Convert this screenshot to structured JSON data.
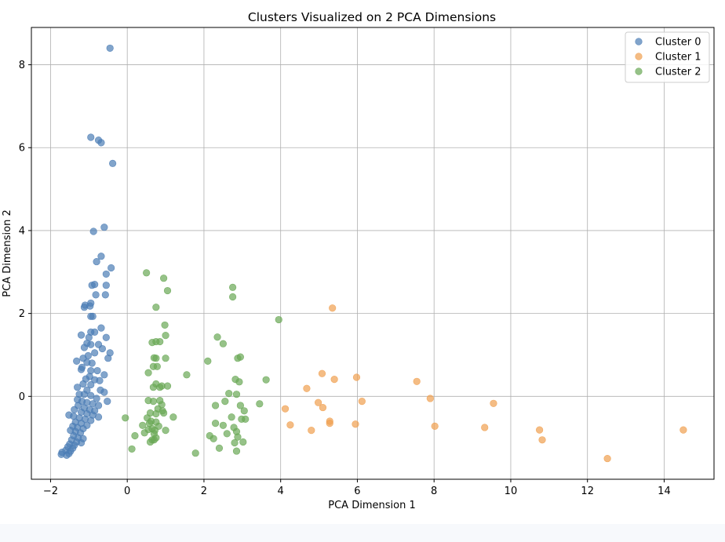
{
  "chart_data": {
    "type": "scatter",
    "title": "Clusters Visualized on 2 PCA Dimensions",
    "xlabel": "PCA Dimension 1",
    "ylabel": "PCA Dimension 2",
    "xlim": [
      -2.5,
      15.3
    ],
    "ylim": [
      -2.0,
      8.9
    ],
    "xticks": [
      -2,
      0,
      2,
      4,
      6,
      8,
      10,
      12,
      14
    ],
    "yticks": [
      0,
      2,
      4,
      6,
      8
    ],
    "grid": true,
    "legend_position": "top-right",
    "series": [
      {
        "name": "Cluster 0",
        "color": "#4c7db5",
        "points": [
          [
            -0.45,
            8.4
          ],
          [
            -0.95,
            6.25
          ],
          [
            -0.75,
            6.18
          ],
          [
            -0.68,
            6.12
          ],
          [
            -0.38,
            5.62
          ],
          [
            -0.6,
            4.08
          ],
          [
            -0.88,
            3.98
          ],
          [
            -0.42,
            3.1
          ],
          [
            -0.68,
            3.38
          ],
          [
            -0.8,
            3.25
          ],
          [
            -0.55,
            2.95
          ],
          [
            -0.55,
            2.68
          ],
          [
            -0.85,
            2.7
          ],
          [
            -0.92,
            2.68
          ],
          [
            -0.82,
            2.45
          ],
          [
            -0.57,
            2.45
          ],
          [
            -1.1,
            2.2
          ],
          [
            -0.95,
            2.25
          ],
          [
            -1.12,
            2.15
          ],
          [
            -0.97,
            2.18
          ],
          [
            -0.9,
            1.93
          ],
          [
            -0.95,
            1.93
          ],
          [
            -0.68,
            1.65
          ],
          [
            -0.95,
            1.55
          ],
          [
            -0.85,
            1.55
          ],
          [
            -0.55,
            1.42
          ],
          [
            -1.2,
            1.48
          ],
          [
            -1.0,
            1.42
          ],
          [
            -1.05,
            1.28
          ],
          [
            -0.95,
            1.25
          ],
          [
            -1.12,
            1.18
          ],
          [
            -0.75,
            1.25
          ],
          [
            -0.65,
            1.15
          ],
          [
            -0.45,
            1.05
          ],
          [
            -0.5,
            0.92
          ],
          [
            -0.85,
            1.05
          ],
          [
            -1.02,
            0.98
          ],
          [
            -1.15,
            0.92
          ],
          [
            -1.32,
            0.85
          ],
          [
            -1.05,
            0.82
          ],
          [
            -0.92,
            0.8
          ],
          [
            -1.18,
            0.7
          ],
          [
            -1.2,
            0.65
          ],
          [
            -0.95,
            0.62
          ],
          [
            -0.78,
            0.62
          ],
          [
            -0.6,
            0.52
          ],
          [
            -0.98,
            0.48
          ],
          [
            -1.08,
            0.42
          ],
          [
            -0.85,
            0.4
          ],
          [
            -0.72,
            0.38
          ],
          [
            -1.15,
            0.3
          ],
          [
            -0.95,
            0.28
          ],
          [
            -1.3,
            0.22
          ],
          [
            -1.05,
            0.15
          ],
          [
            -0.7,
            0.15
          ],
          [
            -0.6,
            0.1
          ],
          [
            -1.25,
            0.05
          ],
          [
            -1.12,
            0.05
          ],
          [
            -0.95,
            0.02
          ],
          [
            -0.8,
            -0.05
          ],
          [
            -0.52,
            -0.12
          ],
          [
            -1.3,
            -0.08
          ],
          [
            -1.18,
            -0.12
          ],
          [
            -1.05,
            -0.15
          ],
          [
            -0.9,
            -0.18
          ],
          [
            -0.75,
            -0.22
          ],
          [
            -1.28,
            -0.22
          ],
          [
            -1.12,
            -0.28
          ],
          [
            -0.98,
            -0.32
          ],
          [
            -0.85,
            -0.35
          ],
          [
            -1.38,
            -0.32
          ],
          [
            -1.2,
            -0.38
          ],
          [
            -1.05,
            -0.42
          ],
          [
            -0.9,
            -0.45
          ],
          [
            -0.75,
            -0.5
          ],
          [
            -1.52,
            -0.45
          ],
          [
            -1.4,
            -0.48
          ],
          [
            -1.25,
            -0.52
          ],
          [
            -1.1,
            -0.55
          ],
          [
            -0.95,
            -0.58
          ],
          [
            -1.35,
            -0.62
          ],
          [
            -1.2,
            -0.65
          ],
          [
            -1.05,
            -0.7
          ],
          [
            -1.42,
            -0.72
          ],
          [
            -1.3,
            -0.75
          ],
          [
            -1.15,
            -0.78
          ],
          [
            -1.48,
            -0.82
          ],
          [
            -1.35,
            -0.85
          ],
          [
            -1.22,
            -0.88
          ],
          [
            -1.4,
            -0.95
          ],
          [
            -1.28,
            -1.0
          ],
          [
            -1.15,
            -1.02
          ],
          [
            -1.45,
            -1.05
          ],
          [
            -1.32,
            -1.1
          ],
          [
            -1.2,
            -1.12
          ],
          [
            -1.5,
            -1.15
          ],
          [
            -1.38,
            -1.18
          ],
          [
            -1.55,
            -1.22
          ],
          [
            -1.42,
            -1.25
          ],
          [
            -1.6,
            -1.3
          ],
          [
            -1.48,
            -1.32
          ],
          [
            -1.52,
            -1.38
          ],
          [
            -1.58,
            -1.42
          ],
          [
            -1.7,
            -1.35
          ],
          [
            -1.72,
            -1.4
          ]
        ]
      },
      {
        "name": "Cluster 1",
        "color": "#f0a050",
        "points": [
          [
            5.35,
            2.13
          ],
          [
            5.08,
            0.55
          ],
          [
            5.98,
            0.46
          ],
          [
            5.4,
            0.41
          ],
          [
            7.55,
            0.36
          ],
          [
            4.68,
            0.19
          ],
          [
            7.9,
            -0.05
          ],
          [
            6.12,
            -0.12
          ],
          [
            9.55,
            -0.17
          ],
          [
            4.98,
            -0.15
          ],
          [
            5.1,
            -0.27
          ],
          [
            4.12,
            -0.3
          ],
          [
            5.28,
            -0.6
          ],
          [
            5.28,
            -0.65
          ],
          [
            5.95,
            -0.67
          ],
          [
            4.25,
            -0.69
          ],
          [
            8.02,
            -0.72
          ],
          [
            9.32,
            -0.75
          ],
          [
            4.8,
            -0.82
          ],
          [
            10.75,
            -0.81
          ],
          [
            14.5,
            -0.81
          ],
          [
            10.82,
            -1.05
          ],
          [
            12.52,
            -1.5
          ]
        ]
      },
      {
        "name": "Cluster 2",
        "color": "#6aa856",
        "points": [
          [
            0.5,
            2.98
          ],
          [
            0.95,
            2.85
          ],
          [
            2.75,
            2.63
          ],
          [
            2.75,
            2.4
          ],
          [
            1.05,
            2.55
          ],
          [
            0.75,
            2.15
          ],
          [
            3.95,
            1.85
          ],
          [
            0.98,
            1.72
          ],
          [
            2.35,
            1.43
          ],
          [
            1.0,
            1.47
          ],
          [
            0.65,
            1.3
          ],
          [
            0.75,
            1.32
          ],
          [
            0.85,
            1.32
          ],
          [
            2.5,
            1.27
          ],
          [
            2.95,
            0.95
          ],
          [
            2.88,
            0.92
          ],
          [
            0.7,
            0.93
          ],
          [
            0.75,
            0.92
          ],
          [
            1.0,
            0.92
          ],
          [
            2.1,
            0.85
          ],
          [
            0.68,
            0.72
          ],
          [
            0.78,
            0.72
          ],
          [
            0.55,
            0.57
          ],
          [
            1.55,
            0.52
          ],
          [
            3.62,
            0.4
          ],
          [
            2.82,
            0.41
          ],
          [
            2.92,
            0.35
          ],
          [
            0.75,
            0.3
          ],
          [
            0.9,
            0.25
          ],
          [
            0.85,
            0.22
          ],
          [
            1.05,
            0.25
          ],
          [
            0.68,
            0.22
          ],
          [
            2.65,
            0.07
          ],
          [
            2.85,
            0.05
          ],
          [
            0.55,
            -0.1
          ],
          [
            0.68,
            -0.12
          ],
          [
            0.85,
            -0.1
          ],
          [
            2.55,
            -0.12
          ],
          [
            3.45,
            -0.18
          ],
          [
            0.9,
            -0.2
          ],
          [
            2.3,
            -0.22
          ],
          [
            2.95,
            -0.22
          ],
          [
            0.8,
            -0.3
          ],
          [
            0.92,
            -0.35
          ],
          [
            3.05,
            -0.35
          ],
          [
            0.6,
            -0.4
          ],
          [
            0.75,
            -0.42
          ],
          [
            0.95,
            -0.4
          ],
          [
            1.2,
            -0.5
          ],
          [
            0.52,
            -0.52
          ],
          [
            -0.05,
            -0.52
          ],
          [
            2.72,
            -0.5
          ],
          [
            2.98,
            -0.55
          ],
          [
            3.08,
            -0.55
          ],
          [
            0.62,
            -0.6
          ],
          [
            0.75,
            -0.62
          ],
          [
            0.58,
            -0.65
          ],
          [
            0.4,
            -0.7
          ],
          [
            2.3,
            -0.65
          ],
          [
            2.5,
            -0.7
          ],
          [
            0.82,
            -0.72
          ],
          [
            0.65,
            -0.78
          ],
          [
            0.55,
            -0.8
          ],
          [
            0.72,
            -0.82
          ],
          [
            1.0,
            -0.82
          ],
          [
            2.85,
            -0.85
          ],
          [
            2.6,
            -0.9
          ],
          [
            2.78,
            -0.75
          ],
          [
            0.45,
            -0.88
          ],
          [
            0.7,
            -0.9
          ],
          [
            0.2,
            -0.95
          ],
          [
            2.15,
            -0.95
          ],
          [
            2.88,
            -0.98
          ],
          [
            0.75,
            -1.0
          ],
          [
            0.65,
            -1.05
          ],
          [
            2.25,
            -1.02
          ],
          [
            2.8,
            -1.12
          ],
          [
            3.02,
            -1.1
          ],
          [
            0.6,
            -1.1
          ],
          [
            0.12,
            -1.27
          ],
          [
            2.4,
            -1.25
          ],
          [
            2.85,
            -1.32
          ],
          [
            1.78,
            -1.37
          ],
          [
            0.7,
            -1.05
          ]
        ]
      }
    ]
  }
}
